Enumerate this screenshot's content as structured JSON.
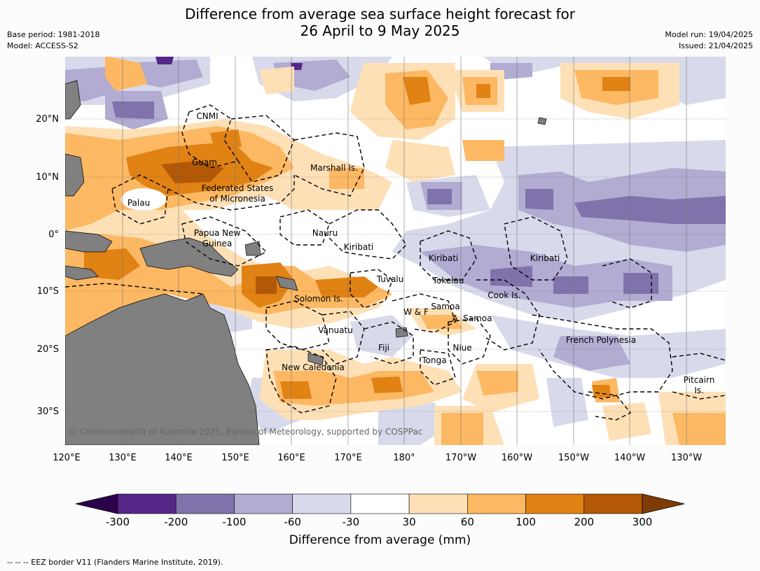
{
  "title_line1": "Difference from average sea surface height forecast for",
  "title_line2": "26 April to 9 May 2025",
  "meta_left": {
    "base_period": "Base period: 1981-2018",
    "model": "Model: ACCESS-S2"
  },
  "meta_right": {
    "model_run": "Model run: 19/04/2025",
    "issued": "Issued: 21/04/2025"
  },
  "copyright": "© Commonwealth of Australia 2025, Bureau of Meteorology, supported by COSPPac",
  "lat_labels": [
    "20°N",
    "10°N",
    "0°",
    "10°S",
    "20°S",
    "30°S"
  ],
  "lon_labels": [
    "120°E",
    "130°E",
    "140°E",
    "150°E",
    "160°E",
    "170°E",
    "180°",
    "170°W",
    "160°W",
    "150°W",
    "140°W",
    "130°W"
  ],
  "places": [
    {
      "name": "CNMI"
    },
    {
      "name": "Guam"
    },
    {
      "name": "Marshall Is."
    },
    {
      "name": "Federated States"
    },
    {
      "name": "of Micronesia"
    },
    {
      "name": "Palau"
    },
    {
      "name": "Papua New"
    },
    {
      "name": "Guinea"
    },
    {
      "name": "Nauru"
    },
    {
      "name": "Kiribati"
    },
    {
      "name": "Kiribati"
    },
    {
      "name": "Kiribati"
    },
    {
      "name": "Tuvalu"
    },
    {
      "name": "Tokelau"
    },
    {
      "name": "Solomon Is."
    },
    {
      "name": "Cook Is."
    },
    {
      "name": "Samoa"
    },
    {
      "name": "W & F"
    },
    {
      "name": "A. Samoa"
    },
    {
      "name": "Vanuatu"
    },
    {
      "name": "Fiji"
    },
    {
      "name": "Niue"
    },
    {
      "name": "Tonga"
    },
    {
      "name": "French Polynesia"
    },
    {
      "name": "New Caledonia"
    },
    {
      "name": "Pitcairn"
    },
    {
      "name": "Is."
    }
  ],
  "colorbar": {
    "colors": [
      "#2d004b",
      "#542788",
      "#8073ac",
      "#b2abd2",
      "#d8daeb",
      "#ffffff",
      "#fee0b6",
      "#fdb863",
      "#e08214",
      "#b35806",
      "#7f3b08"
    ],
    "tick_labels": [
      "-300",
      "-200",
      "-100",
      "-60",
      "-30",
      "30",
      "60",
      "100",
      "200",
      "300"
    ],
    "title": "Difference from average (mm)"
  },
  "footer": "--  --  -- EEZ border V11 (Flanders Marine Institute, 2019)."
}
